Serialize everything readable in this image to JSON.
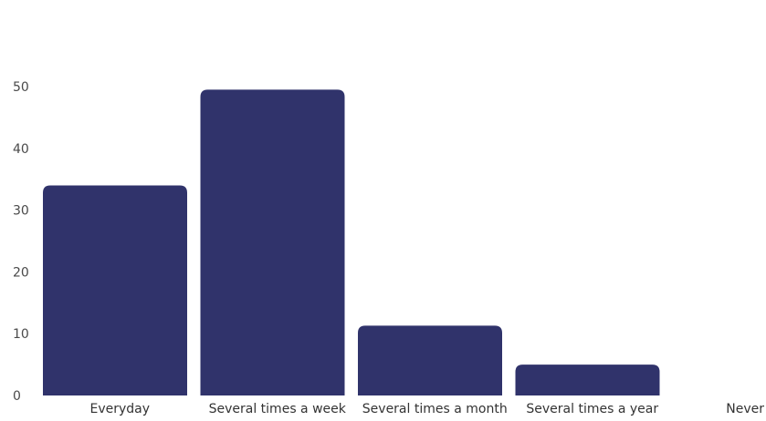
{
  "chart_data": {
    "type": "bar",
    "title": "",
    "xlabel": "",
    "ylabel": "",
    "categories": [
      "Everyday",
      "Several times a week",
      "Several times a month",
      "Several times a year",
      "Never"
    ],
    "values": [
      34,
      49.5,
      11.3,
      5,
      0
    ],
    "ylim": [
      0,
      50
    ],
    "yticks": [
      0,
      10,
      20,
      30,
      40,
      50
    ],
    "grid": false,
    "legend": "none",
    "bar_color": "#30336b"
  }
}
